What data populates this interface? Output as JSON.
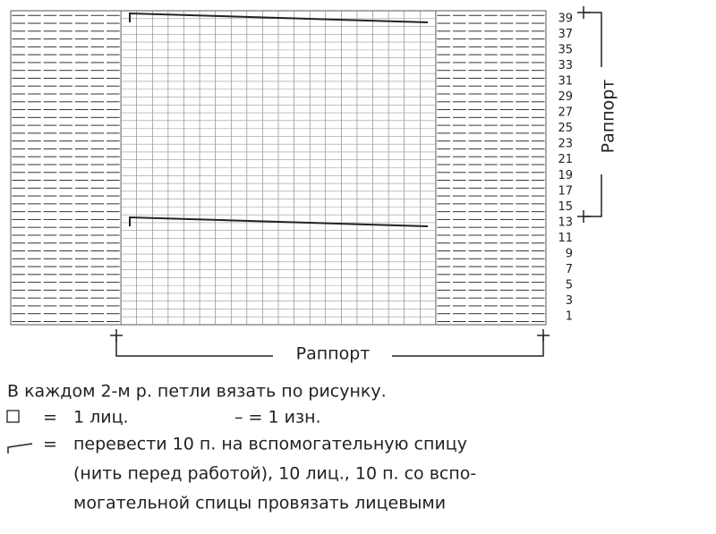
{
  "row_labels": [
    1,
    3,
    5,
    7,
    9,
    11,
    13,
    15,
    17,
    19,
    21,
    23,
    25,
    27,
    29,
    31,
    33,
    35,
    37,
    39
  ],
  "repeat_label_vertical": "Раппорт",
  "repeat_label_horizontal": "Раппорт",
  "note": "В каждом 2-м р. петли вязать по рисунку.",
  "legend": [
    {
      "sign": "=",
      "text": "1 лиц.",
      "text2": "– = 1 изн."
    },
    {
      "sign": "=",
      "lines": [
        "перевести 10 п. на вспомогательную спицу",
        "(нить перед работой), 10 лиц., 10 п. со вспо-",
        "могательной спицы провязать лицевыми"
      ]
    }
  ]
}
